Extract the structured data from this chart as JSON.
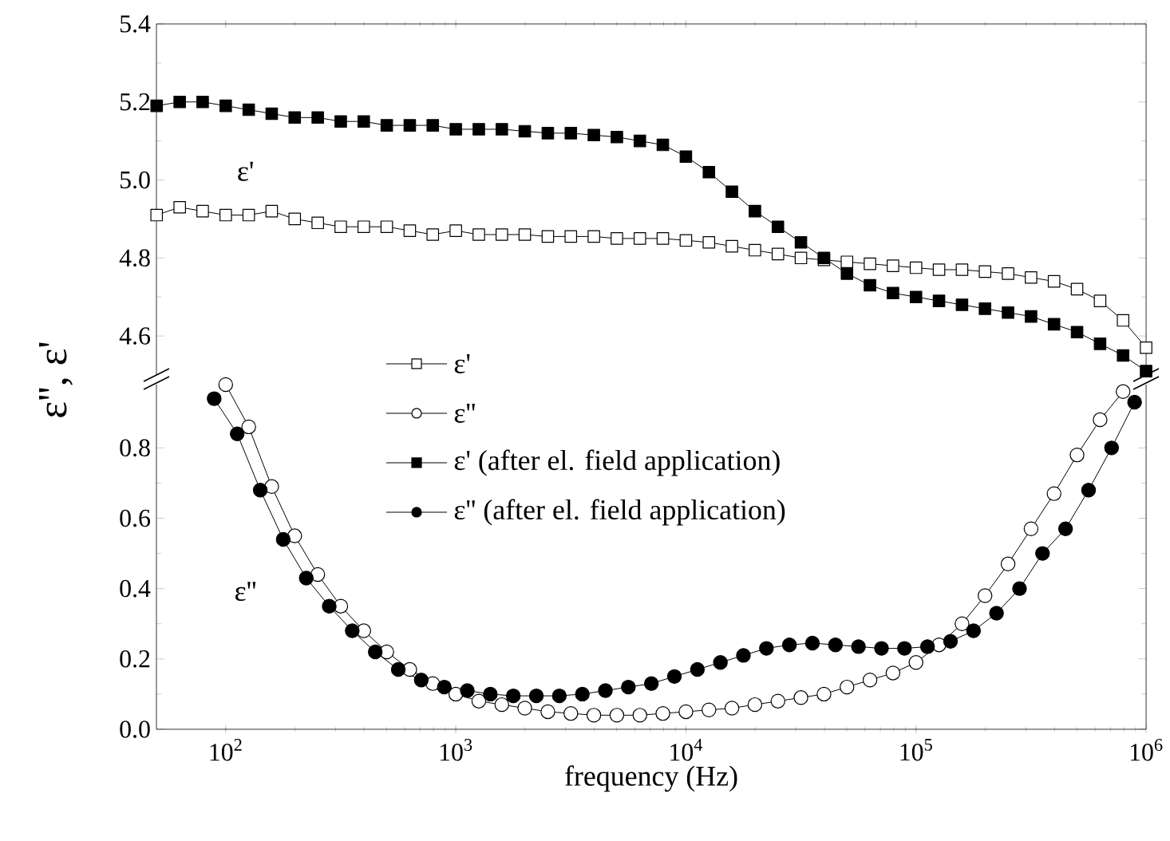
{
  "chart_data": [
    {
      "type": "line",
      "ylabel": "ε'', ε'",
      "xlim": [
        50,
        1000000
      ],
      "ylim": [
        4.5,
        5.4
      ],
      "log": "x",
      "marker": "square",
      "legend": "bottom",
      "tick_labels": "y",
      "xticks": [
        {
          "value": 100,
          "label": null
        },
        {
          "value": 1000,
          "label": null
        },
        {
          "value": 10000,
          "label": null
        },
        {
          "value": 100000,
          "label": null
        },
        {
          "value": 1000000,
          "label": null
        }
      ],
      "yticks": [
        {
          "value": 4.6,
          "label": "4.6"
        },
        {
          "value": 4.8,
          "label": "4.8"
        },
        {
          "value": 5.0,
          "label": "5.0"
        },
        {
          "value": 5.2,
          "label": "5.2"
        },
        {
          "value": 5.4,
          "label": "5.4"
        }
      ],
      "annotations": [
        "ε'"
      ],
      "x": [
        50.1,
        63.1,
        79.4,
        100,
        125.9,
        158.5,
        199.5,
        251.2,
        316.2,
        398.1,
        501.2,
        631,
        794.3,
        1000,
        1259,
        1585,
        1995,
        2512,
        3162,
        3981,
        5012,
        6310,
        7943,
        10000,
        12589,
        15849,
        19953,
        25119,
        31623,
        39811,
        50119,
        63096,
        79433,
        100000,
        125893,
        158489,
        199526,
        251189,
        316228,
        398107,
        501187,
        630957,
        794328,
        1000000
      ],
      "series": [
        {
          "name": "ε'",
          "color": "#ffffff",
          "values": [
            4.91,
            4.93,
            4.92,
            4.91,
            4.91,
            4.92,
            4.9,
            4.89,
            4.88,
            4.88,
            4.88,
            4.87,
            4.86,
            4.87,
            4.86,
            4.86,
            4.86,
            4.855,
            4.855,
            4.855,
            4.85,
            4.85,
            4.85,
            4.845,
            4.84,
            4.83,
            4.82,
            4.81,
            4.8,
            4.795,
            4.79,
            4.785,
            4.78,
            4.775,
            4.77,
            4.77,
            4.765,
            4.76,
            4.75,
            4.74,
            4.72,
            4.69,
            4.64,
            4.57
          ]
        },
        {
          "name": "ε' (after el. field application)",
          "color": "#000000",
          "values": [
            5.19,
            5.2,
            5.2,
            5.19,
            5.18,
            5.17,
            5.16,
            5.16,
            5.15,
            5.15,
            5.14,
            5.14,
            5.14,
            5.13,
            5.13,
            5.13,
            5.125,
            5.12,
            5.12,
            5.115,
            5.11,
            5.1,
            5.09,
            5.06,
            5.02,
            4.97,
            4.92,
            4.88,
            4.84,
            4.8,
            4.76,
            4.73,
            4.71,
            4.7,
            4.69,
            4.68,
            4.67,
            4.66,
            4.65,
            4.63,
            4.61,
            4.58,
            4.55,
            4.51
          ]
        }
      ]
    },
    {
      "type": "line",
      "xlabel": "frequency (Hz)",
      "xlim": [
        50,
        1000000
      ],
      "ylim": [
        0,
        0.98
      ],
      "log": "x",
      "marker": "circle",
      "legend": "top",
      "xticks": [
        {
          "value": 100,
          "label": "10$^{2}$"
        },
        {
          "value": 1000,
          "label": "10$^{3}$"
        },
        {
          "value": 10000,
          "label": "10$^{4}$"
        },
        {
          "value": 100000,
          "label": "10$^{5}$"
        },
        {
          "value": 1000000,
          "label": "10$^{6}$"
        }
      ],
      "yticks": [
        {
          "value": 0,
          "label": "0.0"
        },
        {
          "value": 0.2,
          "label": "0.2"
        },
        {
          "value": 0.4,
          "label": "0.4"
        },
        {
          "value": 0.6,
          "label": "0.6"
        },
        {
          "value": 0.8,
          "label": "0.8"
        }
      ],
      "annotations": [
        "ε''"
      ],
      "series": [
        {
          "name": "ε''",
          "color": "#ffffff",
          "x": [
            100,
            125.9,
            158.5,
            199.5,
            251.2,
            316.2,
            398.1,
            501.2,
            631,
            794.3,
            1000,
            1259,
            1585,
            1995,
            2512,
            3162,
            3981,
            5012,
            6310,
            7943,
            10000,
            12589,
            15849,
            19953,
            25119,
            31623,
            39811,
            50119,
            63096,
            79433,
            100000,
            125893,
            158489,
            199526,
            251189,
            316228,
            398107,
            501187,
            630957,
            794328
          ],
          "values": [
            0.98,
            0.86,
            0.69,
            0.55,
            0.44,
            0.35,
            0.28,
            0.22,
            0.17,
            0.13,
            0.1,
            0.08,
            0.07,
            0.06,
            0.05,
            0.045,
            0.04,
            0.04,
            0.04,
            0.045,
            0.05,
            0.055,
            0.06,
            0.07,
            0.08,
            0.09,
            0.1,
            0.12,
            0.14,
            0.16,
            0.19,
            0.24,
            0.3,
            0.38,
            0.47,
            0.57,
            0.67,
            0.78,
            0.88,
            0.96
          ]
        },
        {
          "name": "ε'' (after el. field application)",
          "color": "#000000",
          "x": [
            89.1,
            112.2,
            141.3,
            177.8,
            223.9,
            281.8,
            354.8,
            446.7,
            562.3,
            707.9,
            891.3,
            1122,
            1413,
            1778,
            2239,
            2818,
            3548,
            4467,
            5623,
            7079,
            8913,
            11220,
            14125,
            17783,
            22387,
            28184,
            35481,
            44668,
            56234,
            70795,
            89125,
            112202,
            141254,
            177828,
            223872,
            281838,
            354813,
            446684,
            562341,
            707946,
            891251
          ],
          "values": [
            0.94,
            0.84,
            0.68,
            0.54,
            0.43,
            0.35,
            0.28,
            0.22,
            0.17,
            0.14,
            0.12,
            0.11,
            0.1,
            0.095,
            0.095,
            0.095,
            0.1,
            0.11,
            0.12,
            0.13,
            0.15,
            0.17,
            0.19,
            0.21,
            0.23,
            0.24,
            0.245,
            0.24,
            0.235,
            0.23,
            0.23,
            0.235,
            0.25,
            0.28,
            0.33,
            0.4,
            0.5,
            0.57,
            0.68,
            0.8,
            0.93
          ]
        }
      ]
    }
  ]
}
